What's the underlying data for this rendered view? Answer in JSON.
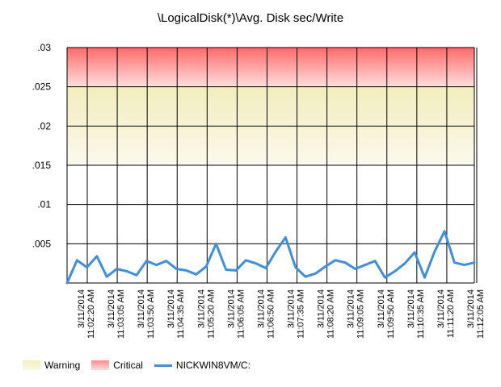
{
  "chart_data": {
    "type": "line",
    "title": "\\LogicalDisk(*)\\Avg. Disk sec/Write",
    "y_ticks": [
      ".03",
      ".025",
      ".02",
      ".015",
      ".01",
      ".005"
    ],
    "ylim": [
      0,
      0.03
    ],
    "x_tick_labels": [
      [
        "3/11/2014",
        "11:02:20 AM"
      ],
      [
        "3/11/2014",
        "11:03:05 AM"
      ],
      [
        "3/11/2014",
        "11:03:50 AM"
      ],
      [
        "3/11/2014",
        "11:04:35 AM"
      ],
      [
        "3/11/2014",
        "11:05:20 AM"
      ],
      [
        "3/11/2014",
        "11:06:05 AM"
      ],
      [
        "3/11/2014",
        "11:06:50 AM"
      ],
      [
        "3/11/2014",
        "11:07:35 AM"
      ],
      [
        "3/11/2014",
        "11:08:20 AM"
      ],
      [
        "3/11/2014",
        "11:09:05 AM"
      ],
      [
        "3/11/2014",
        "11:09:50 AM"
      ],
      [
        "3/11/2014",
        "11:10:35 AM"
      ],
      [
        "3/11/2014",
        "11:11:20 AM"
      ],
      [
        "3/11/2014",
        "11:12:05 AM"
      ]
    ],
    "bands": [
      {
        "name": "Warning",
        "from": 0.015,
        "to": 0.025,
        "color_top": "#f2edbd",
        "color_bottom": "#fbf9ec"
      },
      {
        "name": "Critical",
        "from": 0.025,
        "to": 0.03,
        "color_top": "#ff6a6a",
        "color_bottom": "#ffdede"
      }
    ],
    "series": [
      {
        "name": "NICKWIN8VM/C:",
        "color": "#3f8fdc",
        "values": [
          0.0,
          0.0029,
          0.002,
          0.0034,
          0.0008,
          0.0018,
          0.0015,
          0.001,
          0.0028,
          0.0023,
          0.0028,
          0.0018,
          0.0016,
          0.0011,
          0.0021,
          0.005,
          0.0017,
          0.0016,
          0.0029,
          0.0025,
          0.0019,
          0.004,
          0.0058,
          0.002,
          0.0008,
          0.0012,
          0.0021,
          0.0029,
          0.0026,
          0.0018,
          0.0023,
          0.0028,
          0.0007,
          0.0015,
          0.0025,
          0.0039,
          0.0007,
          0.004,
          0.0066,
          0.0026,
          0.0023,
          0.0026
        ]
      }
    ],
    "legend": {
      "placement": "bottom-left",
      "items": [
        {
          "label": "Warning",
          "kind": "band-warning"
        },
        {
          "label": "Critical",
          "kind": "band-critical"
        },
        {
          "label": "NICKWIN8VM/C:",
          "kind": "line"
        }
      ]
    },
    "grid": true
  }
}
